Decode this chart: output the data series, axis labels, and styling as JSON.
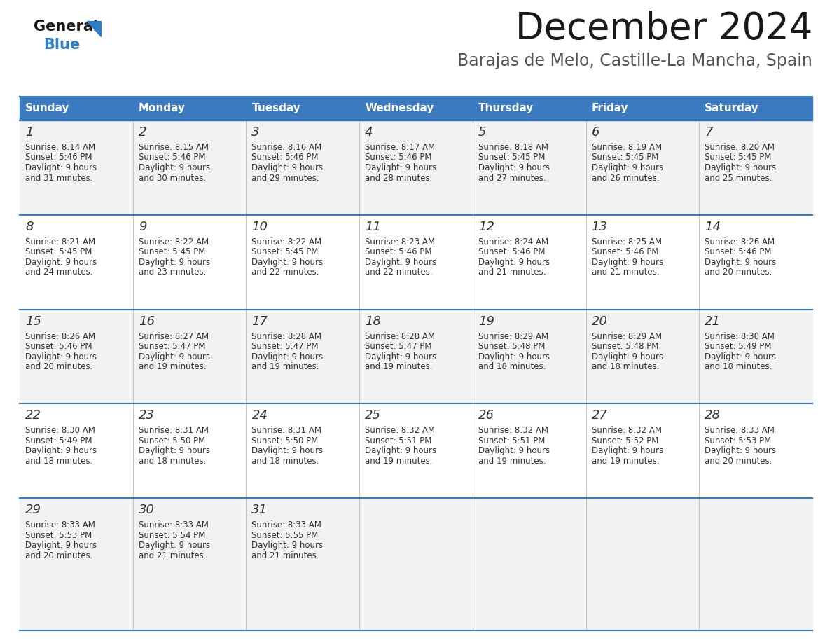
{
  "title": "December 2024",
  "subtitle": "Barajas de Melo, Castille-La Mancha, Spain",
  "header_bg": "#3c7abf",
  "header_text_color": "#ffffff",
  "row_bg": [
    "#f2f2f2",
    "#ffffff",
    "#f2f2f2",
    "#ffffff",
    "#f2f2f2"
  ],
  "day_names": [
    "Sunday",
    "Monday",
    "Tuesday",
    "Wednesday",
    "Thursday",
    "Friday",
    "Saturday"
  ],
  "days": [
    {
      "day": 1,
      "col": 0,
      "row": 0,
      "sunrise": "8:14 AM",
      "sunset": "5:46 PM",
      "daylight_hours": 9,
      "daylight_minutes": 31
    },
    {
      "day": 2,
      "col": 1,
      "row": 0,
      "sunrise": "8:15 AM",
      "sunset": "5:46 PM",
      "daylight_hours": 9,
      "daylight_minutes": 30
    },
    {
      "day": 3,
      "col": 2,
      "row": 0,
      "sunrise": "8:16 AM",
      "sunset": "5:46 PM",
      "daylight_hours": 9,
      "daylight_minutes": 29
    },
    {
      "day": 4,
      "col": 3,
      "row": 0,
      "sunrise": "8:17 AM",
      "sunset": "5:46 PM",
      "daylight_hours": 9,
      "daylight_minutes": 28
    },
    {
      "day": 5,
      "col": 4,
      "row": 0,
      "sunrise": "8:18 AM",
      "sunset": "5:45 PM",
      "daylight_hours": 9,
      "daylight_minutes": 27
    },
    {
      "day": 6,
      "col": 5,
      "row": 0,
      "sunrise": "8:19 AM",
      "sunset": "5:45 PM",
      "daylight_hours": 9,
      "daylight_minutes": 26
    },
    {
      "day": 7,
      "col": 6,
      "row": 0,
      "sunrise": "8:20 AM",
      "sunset": "5:45 PM",
      "daylight_hours": 9,
      "daylight_minutes": 25
    },
    {
      "day": 8,
      "col": 0,
      "row": 1,
      "sunrise": "8:21 AM",
      "sunset": "5:45 PM",
      "daylight_hours": 9,
      "daylight_minutes": 24
    },
    {
      "day": 9,
      "col": 1,
      "row": 1,
      "sunrise": "8:22 AM",
      "sunset": "5:45 PM",
      "daylight_hours": 9,
      "daylight_minutes": 23
    },
    {
      "day": 10,
      "col": 2,
      "row": 1,
      "sunrise": "8:22 AM",
      "sunset": "5:45 PM",
      "daylight_hours": 9,
      "daylight_minutes": 22
    },
    {
      "day": 11,
      "col": 3,
      "row": 1,
      "sunrise": "8:23 AM",
      "sunset": "5:46 PM",
      "daylight_hours": 9,
      "daylight_minutes": 22
    },
    {
      "day": 12,
      "col": 4,
      "row": 1,
      "sunrise": "8:24 AM",
      "sunset": "5:46 PM",
      "daylight_hours": 9,
      "daylight_minutes": 21
    },
    {
      "day": 13,
      "col": 5,
      "row": 1,
      "sunrise": "8:25 AM",
      "sunset": "5:46 PM",
      "daylight_hours": 9,
      "daylight_minutes": 21
    },
    {
      "day": 14,
      "col": 6,
      "row": 1,
      "sunrise": "8:26 AM",
      "sunset": "5:46 PM",
      "daylight_hours": 9,
      "daylight_minutes": 20
    },
    {
      "day": 15,
      "col": 0,
      "row": 2,
      "sunrise": "8:26 AM",
      "sunset": "5:46 PM",
      "daylight_hours": 9,
      "daylight_minutes": 20
    },
    {
      "day": 16,
      "col": 1,
      "row": 2,
      "sunrise": "8:27 AM",
      "sunset": "5:47 PM",
      "daylight_hours": 9,
      "daylight_minutes": 19
    },
    {
      "day": 17,
      "col": 2,
      "row": 2,
      "sunrise": "8:28 AM",
      "sunset": "5:47 PM",
      "daylight_hours": 9,
      "daylight_minutes": 19
    },
    {
      "day": 18,
      "col": 3,
      "row": 2,
      "sunrise": "8:28 AM",
      "sunset": "5:47 PM",
      "daylight_hours": 9,
      "daylight_minutes": 19
    },
    {
      "day": 19,
      "col": 4,
      "row": 2,
      "sunrise": "8:29 AM",
      "sunset": "5:48 PM",
      "daylight_hours": 9,
      "daylight_minutes": 18
    },
    {
      "day": 20,
      "col": 5,
      "row": 2,
      "sunrise": "8:29 AM",
      "sunset": "5:48 PM",
      "daylight_hours": 9,
      "daylight_minutes": 18
    },
    {
      "day": 21,
      "col": 6,
      "row": 2,
      "sunrise": "8:30 AM",
      "sunset": "5:49 PM",
      "daylight_hours": 9,
      "daylight_minutes": 18
    },
    {
      "day": 22,
      "col": 0,
      "row": 3,
      "sunrise": "8:30 AM",
      "sunset": "5:49 PM",
      "daylight_hours": 9,
      "daylight_minutes": 18
    },
    {
      "day": 23,
      "col": 1,
      "row": 3,
      "sunrise": "8:31 AM",
      "sunset": "5:50 PM",
      "daylight_hours": 9,
      "daylight_minutes": 18
    },
    {
      "day": 24,
      "col": 2,
      "row": 3,
      "sunrise": "8:31 AM",
      "sunset": "5:50 PM",
      "daylight_hours": 9,
      "daylight_minutes": 18
    },
    {
      "day": 25,
      "col": 3,
      "row": 3,
      "sunrise": "8:32 AM",
      "sunset": "5:51 PM",
      "daylight_hours": 9,
      "daylight_minutes": 19
    },
    {
      "day": 26,
      "col": 4,
      "row": 3,
      "sunrise": "8:32 AM",
      "sunset": "5:51 PM",
      "daylight_hours": 9,
      "daylight_minutes": 19
    },
    {
      "day": 27,
      "col": 5,
      "row": 3,
      "sunrise": "8:32 AM",
      "sunset": "5:52 PM",
      "daylight_hours": 9,
      "daylight_minutes": 19
    },
    {
      "day": 28,
      "col": 6,
      "row": 3,
      "sunrise": "8:33 AM",
      "sunset": "5:53 PM",
      "daylight_hours": 9,
      "daylight_minutes": 20
    },
    {
      "day": 29,
      "col": 0,
      "row": 4,
      "sunrise": "8:33 AM",
      "sunset": "5:53 PM",
      "daylight_hours": 9,
      "daylight_minutes": 20
    },
    {
      "day": 30,
      "col": 1,
      "row": 4,
      "sunrise": "8:33 AM",
      "sunset": "5:54 PM",
      "daylight_hours": 9,
      "daylight_minutes": 21
    },
    {
      "day": 31,
      "col": 2,
      "row": 4,
      "sunrise": "8:33 AM",
      "sunset": "5:55 PM",
      "daylight_hours": 9,
      "daylight_minutes": 21
    }
  ],
  "logo_color1": "#1a1a1a",
  "logo_color2": "#2f7ec7",
  "title_color": "#1a1a1a",
  "subtitle_color": "#555555",
  "divider_color": "#3c7abf",
  "text_color": "#333333",
  "cell_line_color": "#bbbbbb"
}
